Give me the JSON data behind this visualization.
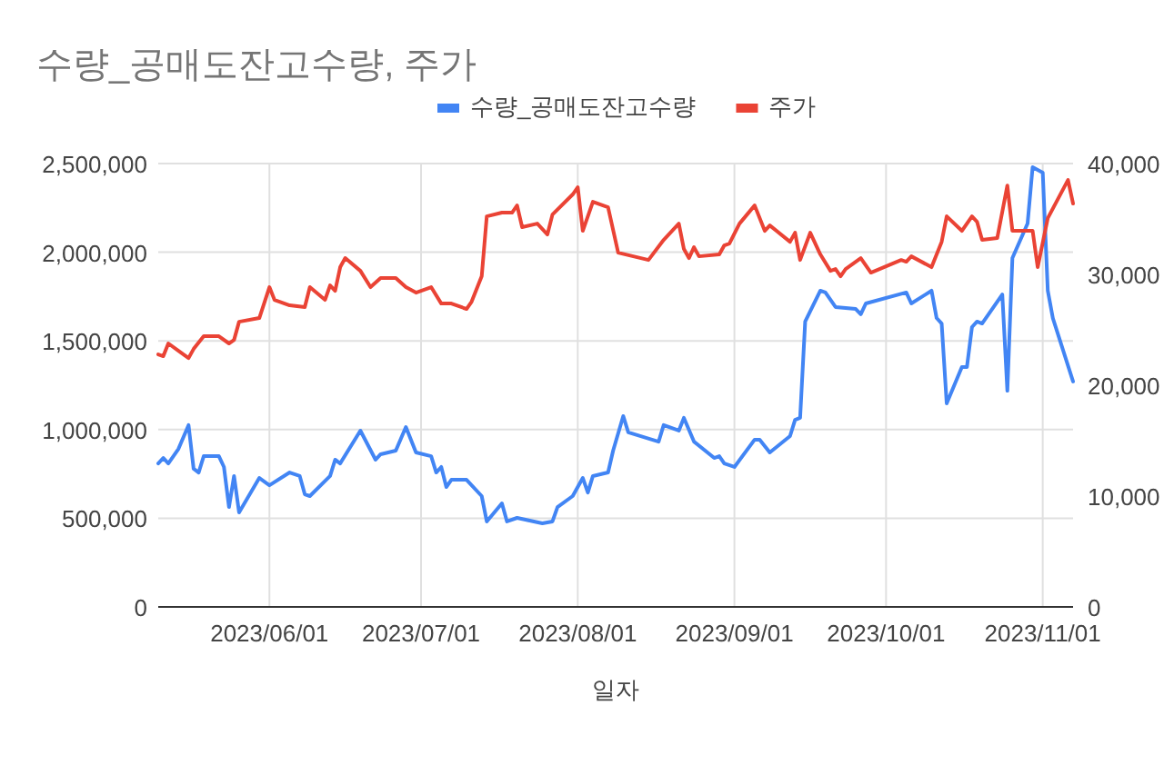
{
  "chart_data": {
    "type": "line",
    "title": "수량_공매도잔고수량, 주가",
    "xlabel": "일자",
    "legend": "top",
    "grid": true,
    "marker": "none",
    "line_style": "solid",
    "xlim": [
      "2023-05-10",
      "2023-11-07"
    ],
    "xticks": [
      {
        "value": "2023-06-01",
        "label": "2023/06/01"
      },
      {
        "value": "2023-07-01",
        "label": "2023/07/01"
      },
      {
        "value": "2023-08-01",
        "label": "2023/08/01"
      },
      {
        "value": "2023-09-01",
        "label": "2023/09/01"
      },
      {
        "value": "2023-10-01",
        "label": "2023/10/01"
      },
      {
        "value": "2023-11-01",
        "label": "2023/11/01"
      }
    ],
    "ylim": [
      0,
      2500000
    ],
    "yticks": [
      {
        "value": 0,
        "label": "0"
      },
      {
        "value": 500000,
        "label": "500,000"
      },
      {
        "value": 1000000,
        "label": "1,000,000"
      },
      {
        "value": 1500000,
        "label": "1,500,000"
      },
      {
        "value": 2000000,
        "label": "2,000,000"
      },
      {
        "value": 2500000,
        "label": "2,500,000"
      }
    ],
    "y2lim": [
      0,
      40000
    ],
    "y2ticks": [
      {
        "value": 0,
        "label": "0"
      },
      {
        "value": 10000,
        "label": "10,000"
      },
      {
        "value": 20000,
        "label": "20,000"
      },
      {
        "value": 30000,
        "label": "30,000"
      },
      {
        "value": 40000,
        "label": "40,000"
      }
    ],
    "series": [
      {
        "name": "수량_공매도잔고수량",
        "color": "#4285f4",
        "x": [
          "2023-05-10",
          "2023-05-11",
          "2023-05-12",
          "2023-05-14",
          "2023-05-16",
          "2023-05-17",
          "2023-05-18",
          "2023-05-19",
          "2023-05-22",
          "2023-05-23",
          "2023-05-24",
          "2023-05-25",
          "2023-05-26",
          "2023-05-30",
          "2023-06-01",
          "2023-06-05",
          "2023-06-07",
          "2023-06-08",
          "2023-06-09",
          "2023-06-13",
          "2023-06-14",
          "2023-06-15",
          "2023-06-19",
          "2023-06-22",
          "2023-06-23",
          "2023-06-26",
          "2023-06-28",
          "2023-06-30",
          "2023-07-03",
          "2023-07-04",
          "2023-07-05",
          "2023-07-06",
          "2023-07-07",
          "2023-07-10",
          "2023-07-13",
          "2023-07-14",
          "2023-07-17",
          "2023-07-18",
          "2023-07-20",
          "2023-07-25",
          "2023-07-27",
          "2023-07-28",
          "2023-07-31",
          "2023-08-02",
          "2023-08-03",
          "2023-08-04",
          "2023-08-07",
          "2023-08-08",
          "2023-08-10",
          "2023-08-11",
          "2023-08-17",
          "2023-08-18",
          "2023-08-21",
          "2023-08-22",
          "2023-08-24",
          "2023-08-28",
          "2023-08-29",
          "2023-08-30",
          "2023-09-01",
          "2023-09-05",
          "2023-09-06",
          "2023-09-08",
          "2023-09-12",
          "2023-09-13",
          "2023-09-14",
          "2023-09-15",
          "2023-09-18",
          "2023-09-19",
          "2023-09-21",
          "2023-09-25",
          "2023-09-26",
          "2023-09-27",
          "2023-10-05",
          "2023-10-06",
          "2023-10-10",
          "2023-10-11",
          "2023-10-12",
          "2023-10-13",
          "2023-10-16",
          "2023-10-17",
          "2023-10-18",
          "2023-10-19",
          "2023-10-20",
          "2023-10-24",
          "2023-10-25",
          "2023-10-26",
          "2023-10-29",
          "2023-10-30",
          "2023-11-01",
          "2023-11-02",
          "2023-11-03",
          "2023-11-07"
        ],
        "values": [
          809000,
          840000,
          809000,
          891000,
          1025000,
          779000,
          758000,
          850000,
          850000,
          789000,
          563000,
          738000,
          533000,
          727000,
          686000,
          758000,
          738000,
          635000,
          625000,
          738000,
          830000,
          809000,
          994000,
          830000,
          861000,
          881000,
          1014000,
          871000,
          850000,
          758000,
          789000,
          676000,
          717000,
          717000,
          625000,
          482000,
          584000,
          482000,
          502000,
          471000,
          482000,
          563000,
          625000,
          727000,
          645000,
          738000,
          758000,
          881000,
          1076000,
          984000,
          932000,
          1025000,
          994000,
          1066000,
          932000,
          840000,
          850000,
          809000,
          789000,
          943000,
          943000,
          871000,
          963000,
          1055000,
          1066000,
          1609000,
          1783000,
          1773000,
          1691000,
          1680000,
          1650000,
          1711000,
          1773000,
          1711000,
          1783000,
          1629000,
          1598000,
          1148000,
          1352000,
          1352000,
          1578000,
          1609000,
          1598000,
          1762000,
          1219000,
          1967000,
          2162000,
          2480000,
          2449000,
          1783000,
          1629000,
          1271000
        ]
      },
      {
        "name": "주가",
        "color": "#ea4335",
        "axis": "y2",
        "x": [
          "2023-05-10",
          "2023-05-11",
          "2023-05-12",
          "2023-05-14",
          "2023-05-16",
          "2023-05-17",
          "2023-05-19",
          "2023-05-22",
          "2023-05-24",
          "2023-05-25",
          "2023-05-26",
          "2023-05-30",
          "2023-06-01",
          "2023-06-02",
          "2023-06-05",
          "2023-06-08",
          "2023-06-09",
          "2023-06-12",
          "2023-06-13",
          "2023-06-14",
          "2023-06-15",
          "2023-06-16",
          "2023-06-19",
          "2023-06-21",
          "2023-06-23",
          "2023-06-26",
          "2023-06-28",
          "2023-06-30",
          "2023-07-03",
          "2023-07-05",
          "2023-07-07",
          "2023-07-10",
          "2023-07-11",
          "2023-07-13",
          "2023-07-14",
          "2023-07-17",
          "2023-07-19",
          "2023-07-20",
          "2023-07-21",
          "2023-07-24",
          "2023-07-26",
          "2023-07-27",
          "2023-07-31",
          "2023-08-01",
          "2023-08-02",
          "2023-08-04",
          "2023-08-07",
          "2023-08-09",
          "2023-08-15",
          "2023-08-18",
          "2023-08-21",
          "2023-08-22",
          "2023-08-23",
          "2023-08-24",
          "2023-08-25",
          "2023-08-29",
          "2023-08-30",
          "2023-08-31",
          "2023-09-02",
          "2023-09-05",
          "2023-09-07",
          "2023-09-08",
          "2023-09-12",
          "2023-09-13",
          "2023-09-14",
          "2023-09-16",
          "2023-09-18",
          "2023-09-20",
          "2023-09-21",
          "2023-09-22",
          "2023-09-23",
          "2023-09-26",
          "2023-09-28",
          "2023-10-04",
          "2023-10-05",
          "2023-10-06",
          "2023-10-10",
          "2023-10-12",
          "2023-10-13",
          "2023-10-16",
          "2023-10-18",
          "2023-10-19",
          "2023-10-20",
          "2023-10-23",
          "2023-10-25",
          "2023-10-26",
          "2023-10-27",
          "2023-10-30",
          "2023-10-31",
          "2023-11-02",
          "2023-11-06",
          "2023-11-07"
        ],
        "values": [
          22780,
          22620,
          23770,
          23110,
          22450,
          23270,
          24420,
          24420,
          23770,
          24090,
          25730,
          26060,
          28850,
          27700,
          27210,
          27050,
          28850,
          27700,
          29010,
          28520,
          30650,
          31470,
          30320,
          28850,
          29670,
          29670,
          28850,
          28350,
          28850,
          27370,
          27370,
          26880,
          27540,
          29830,
          35240,
          35570,
          35570,
          36220,
          34260,
          34580,
          33600,
          35400,
          37210,
          37860,
          33930,
          36550,
          36060,
          31960,
          31300,
          33110,
          34580,
          32290,
          31470,
          32450,
          31630,
          31800,
          32620,
          32780,
          34580,
          36220,
          33930,
          34420,
          32940,
          33760,
          31300,
          33760,
          31800,
          30320,
          30480,
          29830,
          30480,
          31470,
          30160,
          31300,
          31140,
          31630,
          30650,
          32940,
          35240,
          33930,
          35240,
          34750,
          33110,
          33270,
          38020,
          33930,
          33930,
          33930,
          30650,
          35070,
          38520,
          36390
        ]
      }
    ]
  }
}
